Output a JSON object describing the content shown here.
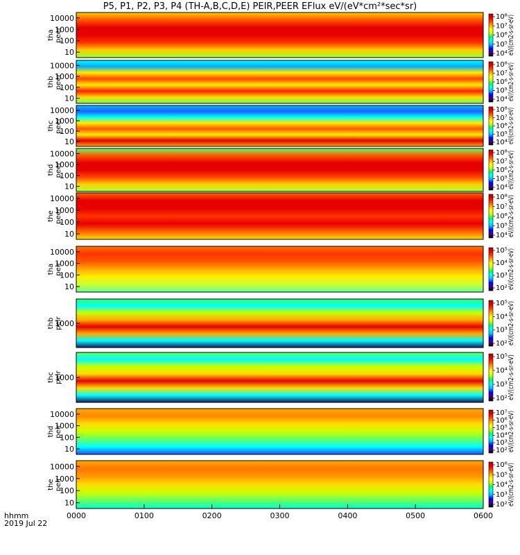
{
  "title": "P5, P1, P2, P3, P4 (TH-A,B,C,D,E) PEIR,PEER EFlux eV/(eV*cm²*sec*sr)",
  "footer": {
    "time_unit": "hhmm",
    "date": "2019 Jul 22"
  },
  "chart_data": {
    "type": "heatmap",
    "x_ticks": [
      "0000",
      "0100",
      "0200",
      "0300",
      "0400",
      "0500",
      "0600"
    ],
    "xlim": [
      "0000",
      "0600"
    ],
    "colorscale": [
      "#000000",
      "#4b0082",
      "#0000ff",
      "#00bfff",
      "#00ffff",
      "#00ff66",
      "#ccff00",
      "#ffff00",
      "#ffaa00",
      "#ff4400",
      "#e60000",
      "#b00000"
    ],
    "panels": [
      {
        "probe": "tha",
        "species": "peer",
        "yticks": [
          "10000",
          "1000",
          "100",
          "10"
        ],
        "cb_ticks": [
          "10⁸",
          "10⁷",
          "10⁶",
          "10⁵",
          "10⁴"
        ],
        "cb_label": "eV/(cm2-s-sr-eV)"
      },
      {
        "probe": "thb",
        "species": "peer",
        "yticks": [
          "10000",
          "1000",
          "100",
          "10"
        ],
        "cb_ticks": [
          "10⁸",
          "10⁷",
          "10⁶",
          "10⁵",
          "10⁴"
        ],
        "cb_label": "eV/(cm2-s-sr-eV)"
      },
      {
        "probe": "thc",
        "species": "peer",
        "yticks": [
          "10000",
          "1000",
          "100",
          "10"
        ],
        "cb_ticks": [
          "10⁸",
          "10⁷",
          "10⁶",
          "10⁵",
          "10⁴"
        ],
        "cb_label": "eV/(cm2-s-sr-eV)"
      },
      {
        "probe": "thd",
        "species": "peer",
        "yticks": [
          "10000",
          "1000",
          "100",
          "10"
        ],
        "cb_ticks": [
          "10⁸",
          "10⁷",
          "10⁶",
          "10⁵",
          "10⁴"
        ],
        "cb_label": "eV/(cm2-s-sr-eV)"
      },
      {
        "probe": "the",
        "species": "peer",
        "yticks": [
          "10000",
          "1000",
          "100",
          "10"
        ],
        "cb_ticks": [
          "10⁸",
          "10⁷",
          "10⁶",
          "10⁵",
          "10⁴"
        ],
        "cb_label": "eV/(cm2-s-sr-eV)"
      },
      {
        "probe": "tha",
        "species": "peir",
        "yticks": [
          "10000",
          "1000",
          "100",
          "10"
        ],
        "cb_ticks": [
          "10⁵",
          "10⁴",
          "10³",
          "10²"
        ],
        "cb_label": "eV/(cm2-s-sr-eV)"
      },
      {
        "probe": "thb",
        "species": "peir",
        "yticks": [
          "1000"
        ],
        "cb_ticks": [
          "10⁵",
          "10⁴",
          "10³",
          "10²"
        ],
        "cb_label": "eV/(cm2-s-sr-eV)"
      },
      {
        "probe": "thc",
        "species": "peir",
        "yticks": [
          "1000"
        ],
        "cb_ticks": [
          "10⁵",
          "10⁴",
          "10³",
          "10²"
        ],
        "cb_label": "eV/(cm2-s-sr-eV)"
      },
      {
        "probe": "thd",
        "species": "peir",
        "yticks": [
          "10000",
          "1000",
          "100",
          "10"
        ],
        "cb_ticks": [
          "10⁷",
          "10⁶",
          "10⁵",
          "10⁴",
          "10³",
          "10²"
        ],
        "cb_label": "eV/(cm2-s-sr-eV)"
      },
      {
        "probe": "the",
        "species": "peir",
        "yticks": [
          "10000",
          "1000",
          "100",
          "10"
        ],
        "cb_ticks": [
          "10⁶",
          "10⁵",
          "10⁴",
          "10³",
          "10²"
        ],
        "cb_label": "eV/(cm2-s-sr-eV)"
      }
    ]
  }
}
